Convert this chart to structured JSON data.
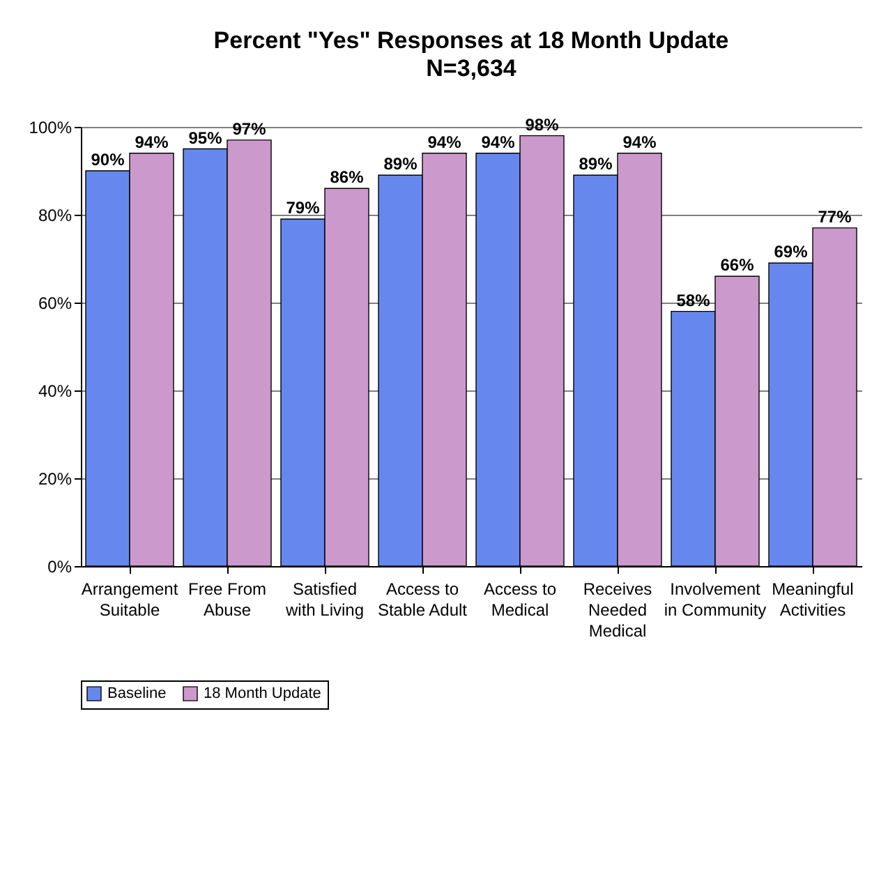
{
  "chart_data": {
    "type": "bar",
    "title": "Percent \"Yes\" Responses at 18 Month Update",
    "subtitle": "N=3,634",
    "categories": [
      "Arrangement Suitable",
      "Free From Abuse",
      "Satisfied with Living",
      "Access to Stable Adult",
      "Access to Medical",
      "Receives Needed Medical",
      "Involvement in Community",
      "Meaningful Activities"
    ],
    "series": [
      {
        "name": "Baseline",
        "color": "#6688ee",
        "values": [
          90,
          95,
          79,
          89,
          94,
          89,
          58,
          69
        ],
        "value_labels": [
          "90%",
          "95%",
          "79%",
          "89%",
          "94%",
          "89%",
          "58%",
          "69%"
        ]
      },
      {
        "name": "18 Month Update",
        "color": "#cc99cc",
        "values": [
          94,
          97,
          86,
          94,
          98,
          94,
          66,
          77
        ],
        "value_labels": [
          "94%",
          "97%",
          "86%",
          "94%",
          "98%",
          "94%",
          "66%",
          "77%"
        ]
      }
    ],
    "ylim": [
      0,
      100
    ],
    "yticks": [
      {
        "value": 0,
        "label": "0%"
      },
      {
        "value": 20,
        "label": "20%"
      },
      {
        "value": 40,
        "label": "40%"
      },
      {
        "value": 60,
        "label": "60%"
      },
      {
        "value": 80,
        "label": "80%"
      },
      {
        "value": 100,
        "label": "100%"
      }
    ],
    "grid": "y",
    "legend": "bottom"
  }
}
